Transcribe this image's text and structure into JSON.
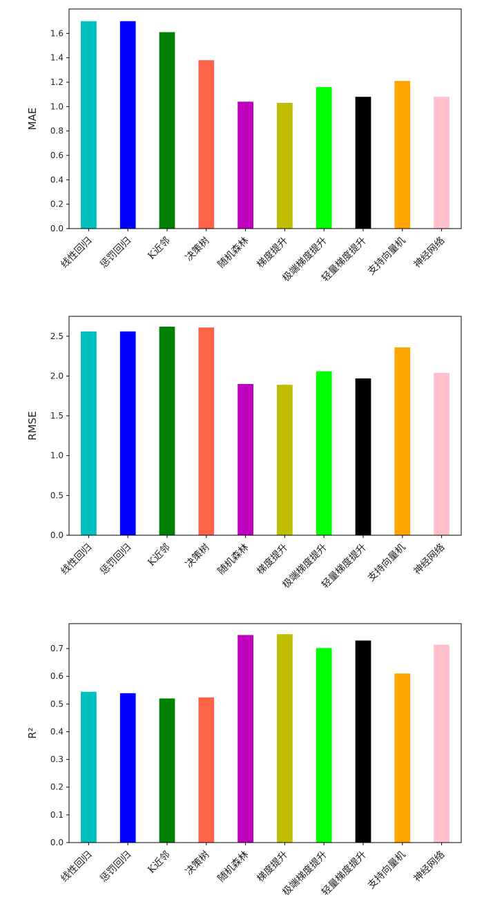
{
  "chart_data": [
    {
      "type": "bar",
      "title": "",
      "xlabel": "",
      "ylabel": "MAE",
      "categories": [
        "线性回归",
        "惩罚回归",
        "K近邻",
        "决策树",
        "随机森林",
        "梯度提升",
        "极端梯度提升",
        "轻量梯度提升",
        "支持向量机",
        "神经网络"
      ],
      "values": [
        1.7,
        1.7,
        1.61,
        1.38,
        1.04,
        1.03,
        1.16,
        1.08,
        1.21,
        1.08
      ],
      "colors": [
        "#00bfbf",
        "#0000ff",
        "#008000",
        "#ff6347",
        "#bf00bf",
        "#bfbf00",
        "#00ff00",
        "#000000",
        "#ffa500",
        "#ffc0cb"
      ],
      "ylim": [
        0,
        1.8
      ],
      "yticks": [
        "0.0",
        "0.2",
        "0.4",
        "0.6",
        "0.8",
        "1.0",
        "1.2",
        "1.4",
        "1.6"
      ],
      "grid": false
    },
    {
      "type": "bar",
      "title": "",
      "xlabel": "",
      "ylabel": "RMSE",
      "categories": [
        "线性回归",
        "惩罚回归",
        "K近邻",
        "决策树",
        "随机森林",
        "梯度提升",
        "极端梯度提升",
        "轻量梯度提升",
        "支持向量机",
        "神经网络"
      ],
      "values": [
        2.56,
        2.56,
        2.62,
        2.61,
        1.9,
        1.89,
        2.06,
        1.97,
        2.36,
        2.04
      ],
      "colors": [
        "#00bfbf",
        "#0000ff",
        "#008000",
        "#ff6347",
        "#bf00bf",
        "#bfbf00",
        "#00ff00",
        "#000000",
        "#ffa500",
        "#ffc0cb"
      ],
      "ylim": [
        0,
        2.75
      ],
      "yticks": [
        "0.0",
        "0.5",
        "1.0",
        "1.5",
        "2.0",
        "2.5"
      ],
      "grid": false
    },
    {
      "type": "bar",
      "title": "",
      "xlabel": "",
      "ylabel": "R²",
      "categories": [
        "线性回归",
        "惩罚回归",
        "K近邻",
        "决策树",
        "随机森林",
        "梯度提升",
        "极端梯度提升",
        "轻量梯度提升",
        "支持向量机",
        "神经网络"
      ],
      "values": [
        0.544,
        0.539,
        0.52,
        0.524,
        0.749,
        0.752,
        0.702,
        0.729,
        0.61,
        0.714
      ],
      "colors": [
        "#00bfbf",
        "#0000ff",
        "#008000",
        "#ff6347",
        "#bf00bf",
        "#bfbf00",
        "#00ff00",
        "#000000",
        "#ffa500",
        "#ffc0cb"
      ],
      "ylim": [
        0,
        0.79
      ],
      "yticks": [
        "0.0",
        "0.1",
        "0.2",
        "0.3",
        "0.4",
        "0.5",
        "0.6",
        "0.7"
      ],
      "grid": false
    }
  ]
}
